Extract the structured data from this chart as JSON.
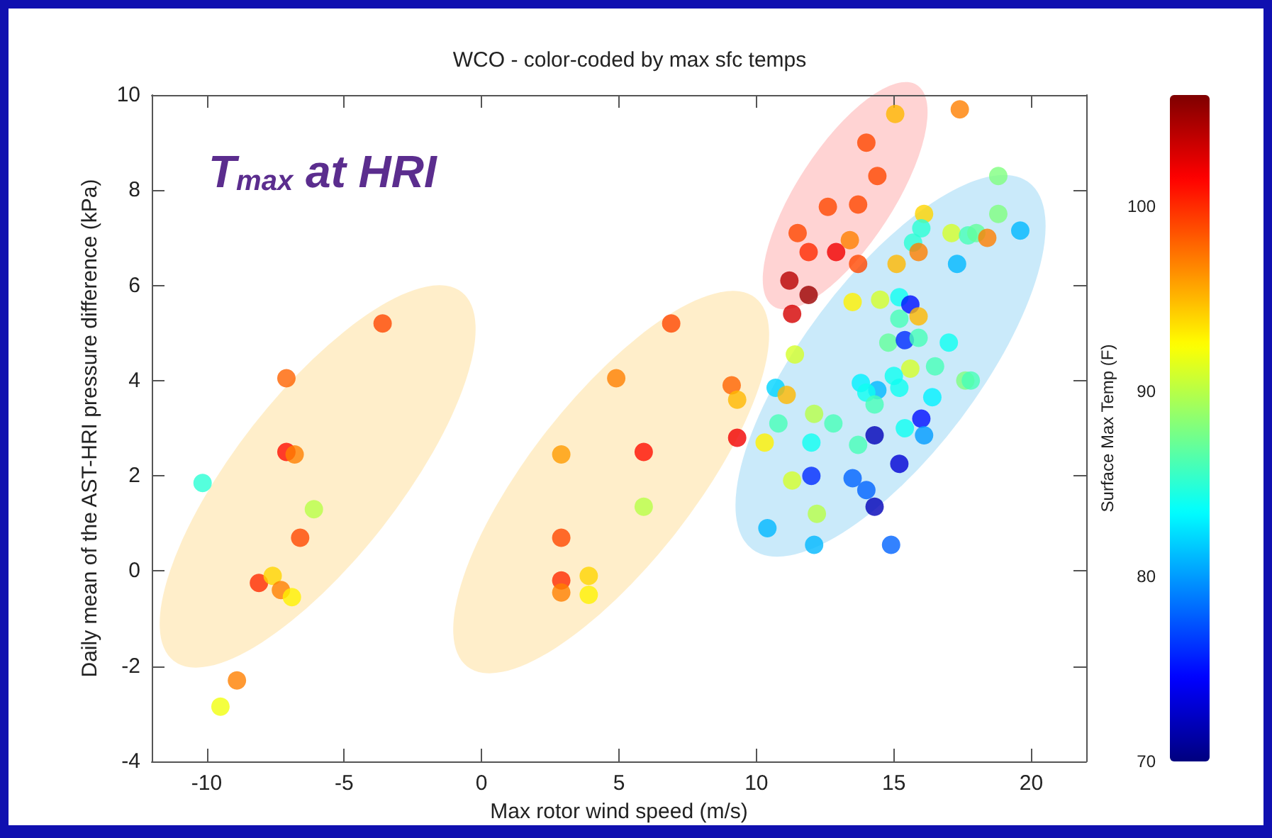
{
  "chart_data": {
    "type": "scatter",
    "title": "WCO - color-coded by max sfc temps",
    "xlabel": "Max rotor wind speed (m/s)",
    "ylabel": "Daily mean of the AST-HRI pressure difference (kPa)",
    "clabel": "Surface Max Temp (F)",
    "annotations": [
      "T$_{max}$ at HRI"
    ],
    "xlim": [
      -12,
      22
    ],
    "xticks": [
      -10,
      -5,
      0,
      5,
      10,
      15,
      20
    ],
    "ylim": [
      -4,
      10
    ],
    "yticks": [
      -4,
      -2,
      0,
      2,
      4,
      6,
      8,
      10
    ],
    "clim": [
      70,
      106
    ],
    "cticks": [
      70,
      80,
      90,
      100
    ],
    "grid": false,
    "marker": "circle",
    "x": [
      -3.6,
      -7.1,
      -7.1,
      -6.8,
      -10.15,
      -6.1,
      -6.6,
      -8.1,
      -7.6,
      -7.3,
      -6.9,
      -8.9,
      -9.5,
      6.9,
      4.9,
      2.9,
      5.9,
      5.9,
      2.9,
      2.9,
      2.9,
      3.9,
      3.9,
      9.1,
      9.3,
      9.3,
      10.3,
      10.7,
      11.1,
      10.8,
      11.4,
      10.4,
      15.05,
      17.4,
      14.0,
      14.4,
      18.8,
      12.6,
      13.7,
      16.1,
      18.8,
      11.5,
      16.0,
      15.7,
      17.1,
      17.7,
      18.0,
      18.4,
      19.6,
      11.9,
      12.9,
      13.4,
      13.7,
      15.9,
      17.3,
      15.1,
      11.2,
      11.9,
      11.3,
      13.5,
      14.5,
      15.2,
      15.6,
      15.9,
      15.2,
      14.8,
      15.4,
      15.9,
      17.0,
      15.6,
      16.5,
      17.6,
      17.8,
      16.4,
      13.8,
      15.0,
      15.2,
      14.4,
      14.0,
      14.3,
      12.1,
      12.8,
      15.4,
      16.0,
      16.1,
      14.3,
      12.0,
      13.7,
      15.2,
      12.0,
      11.3,
      13.5,
      14.0,
      14.3,
      12.2,
      12.1,
      14.9
    ],
    "values": [
      5.2,
      4.05,
      2.5,
      2.45,
      1.85,
      1.3,
      0.7,
      -0.25,
      -0.1,
      -0.4,
      -0.55,
      -2.3,
      -2.85,
      5.2,
      4.05,
      2.45,
      2.5,
      1.35,
      0.7,
      -0.2,
      -0.45,
      -0.1,
      -0.5,
      3.9,
      3.6,
      2.8,
      2.7,
      3.85,
      3.7,
      3.1,
      4.55,
      0.9,
      9.6,
      9.7,
      9.0,
      8.3,
      8.3,
      7.65,
      7.7,
      7.5,
      7.5,
      7.1,
      7.2,
      6.9,
      7.1,
      7.05,
      7.1,
      7.0,
      7.15,
      6.7,
      6.7,
      6.95,
      6.45,
      6.7,
      6.45,
      6.45,
      6.1,
      5.8,
      5.4,
      5.65,
      5.7,
      5.75,
      5.6,
      5.35,
      5.3,
      4.8,
      4.85,
      4.9,
      4.8,
      4.25,
      4.3,
      4.0,
      4.0,
      3.65,
      3.95,
      4.1,
      3.85,
      3.8,
      3.75,
      3.5,
      3.3,
      3.1,
      3.0,
      3.2,
      2.85,
      2.85,
      2.7,
      2.65,
      2.25,
      2.0,
      1.9,
      1.95,
      1.7,
      1.35,
      1.2,
      0.55,
      0.55
    ],
    "cvalues": [
      99,
      98,
      101,
      97,
      85,
      90,
      99,
      100,
      94,
      97,
      93,
      97,
      92,
      99,
      97,
      96,
      101,
      90,
      99,
      100,
      97,
      94,
      93,
      98,
      95,
      102,
      93,
      82,
      95,
      86,
      91,
      81,
      95,
      97,
      99,
      99,
      88,
      99,
      99,
      94,
      88,
      99,
      85,
      85,
      91,
      86,
      87,
      97,
      81,
      100,
      102,
      97,
      99,
      97,
      81,
      95,
      104,
      105,
      103,
      93,
      91,
      84,
      75,
      95,
      86,
      87,
      76,
      86,
      84,
      91,
      86,
      88,
      86,
      83,
      83,
      84,
      84,
      81,
      84,
      86,
      90,
      86,
      84,
      75,
      80,
      72,
      84,
      86,
      73,
      76,
      91,
      78,
      78,
      72,
      90,
      81,
      78
    ]
  }
}
